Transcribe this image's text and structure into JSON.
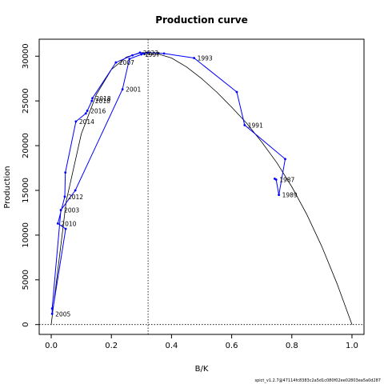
{
  "chart_data": {
    "type": "line",
    "title": "Production curve",
    "xlabel": "B/K",
    "ylabel": "Production",
    "xlim": [
      -0.04,
      1.04
    ],
    "ylim": [
      -1100,
      31900
    ],
    "x_ticks": [
      "0.0",
      "0.2",
      "0.4",
      "0.6",
      "0.8",
      "1.0"
    ],
    "x_tick_values": [
      0,
      0.2,
      0.4,
      0.6,
      0.8,
      1.0
    ],
    "y_ticks": [
      "0",
      "5000",
      "10000",
      "15000",
      "20000",
      "25000",
      "30000"
    ],
    "y_tick_values": [
      0,
      5000,
      10000,
      15000,
      20000,
      25000,
      30000
    ],
    "reference_line_x": 0.322,
    "reference_line_y": 0,
    "curve": {
      "x": [
        0,
        0.05,
        0.1,
        0.15,
        0.2,
        0.25,
        0.3,
        0.322,
        0.35,
        0.4,
        0.45,
        0.5,
        0.55,
        0.6,
        0.65,
        0.7,
        0.75,
        0.8,
        0.85,
        0.9,
        0.95,
        1.0
      ],
      "y": [
        0,
        13800,
        21300,
        25700,
        28500,
        29900,
        30400,
        30400,
        30300,
        29800,
        28800,
        27500,
        26000,
        24300,
        22500,
        20400,
        18100,
        15400,
        12300,
        8700,
        4600,
        0
      ],
      "color": "#000000"
    },
    "series": [
      {
        "color": "#0000ff",
        "points": [
          {
            "x": 0.743,
            "y": 16300,
            "label": ""
          },
          {
            "x": 0.748,
            "y": 16200,
            "label": "1987"
          },
          {
            "x": 0.757,
            "y": 14500,
            "label": "1989"
          },
          {
            "x": 0.778,
            "y": 18500,
            "label": ""
          },
          {
            "x": 0.643,
            "y": 22300,
            "label": "1991"
          },
          {
            "x": 0.617,
            "y": 26000,
            "label": ""
          },
          {
            "x": 0.475,
            "y": 29800,
            "label": "1993"
          },
          {
            "x": 0.375,
            "y": 30300,
            "label": ""
          },
          {
            "x": 0.322,
            "y": 30400,
            "label": ""
          },
          {
            "x": 0.3,
            "y": 30200,
            "label": "1997"
          },
          {
            "x": 0.26,
            "y": 29700,
            "label": ""
          },
          {
            "x": 0.237,
            "y": 26300,
            "label": "2001"
          },
          {
            "x": 0.08,
            "y": 15000,
            "label": ""
          },
          {
            "x": 0.032,
            "y": 12800,
            "label": "2003"
          },
          {
            "x": 0.003,
            "y": 1800,
            "label": ""
          },
          {
            "x": 0.003,
            "y": 1200,
            "label": "2005"
          },
          {
            "x": 0.048,
            "y": 10700,
            "label": ""
          },
          {
            "x": 0.022,
            "y": 11300,
            "label": "2010"
          },
          {
            "x": 0.045,
            "y": 14300,
            "label": "2012"
          },
          {
            "x": 0.047,
            "y": 17000,
            "label": ""
          },
          {
            "x": 0.082,
            "y": 22700,
            "label": "2014"
          },
          {
            "x": 0.115,
            "y": 23600,
            "label": ""
          },
          {
            "x": 0.12,
            "y": 23900,
            "label": "2016"
          },
          {
            "x": 0.135,
            "y": 25000,
            "label": "2018"
          },
          {
            "x": 0.137,
            "y": 25300,
            "label": "2018"
          },
          {
            "x": 0.215,
            "y": 29300,
            "label": "2007"
          },
          {
            "x": 0.27,
            "y": 30100,
            "label": ""
          },
          {
            "x": 0.295,
            "y": 30400,
            "label": "2023"
          },
          {
            "x": 0.31,
            "y": 30300,
            "label": ""
          }
        ]
      }
    ],
    "grid": false
  },
  "footer": "spict_v1.2.7@47114fc8383c2a5d1c080f02ee02803ea5a0d287"
}
